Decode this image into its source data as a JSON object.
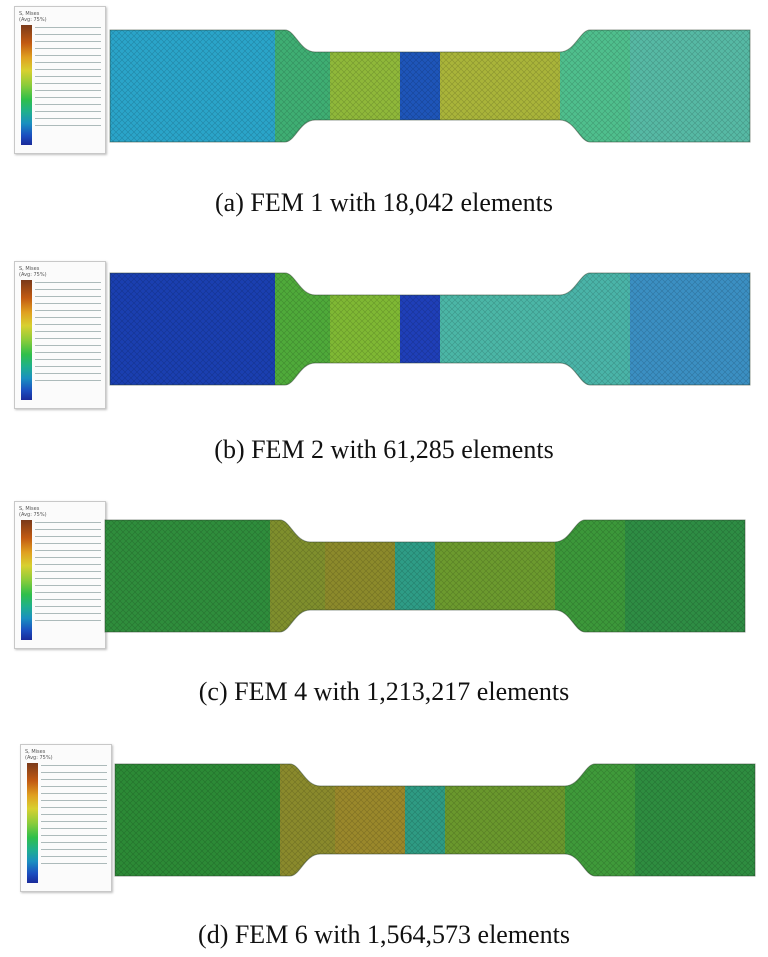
{
  "panels": [
    {
      "id": "a",
      "caption": "(a) FEM 1 with 18,042 elements",
      "colors": {
        "left_grip": "#2aa4c9",
        "left_fillet": "#3fae73",
        "gauge_left": "#8fb83a",
        "neck": "#1e55b9",
        "gauge_right": "#a9b43a",
        "right_fillet": "#4fbf8d",
        "right_grip": "#56b9a4"
      }
    },
    {
      "id": "b",
      "caption": "(b) FEM 2 with 61,285 elements",
      "colors": {
        "left_grip": "#1a3fb0",
        "left_fillet": "#4faa3a",
        "gauge_left": "#7fb834",
        "neck": "#1f3fb8",
        "gauge_right": "#4bb6a6",
        "right_fillet": "#4ab4a8",
        "right_grip": "#3b8fc2"
      }
    },
    {
      "id": "c",
      "caption": "(c) FEM 4 with 1,213,217 elements",
      "colors": {
        "left_grip": "#2f8d3c",
        "left_fillet": "#7f8f2d",
        "gauge_left": "#8c8a2b",
        "neck": "#2e9c86",
        "gauge_right": "#6c9a2e",
        "right_fillet": "#3c983a",
        "right_grip": "#2e8d44"
      }
    },
    {
      "id": "d",
      "caption": "(d) FEM 6 with 1,564,573 elements",
      "colors": {
        "left_grip": "#2c8a36",
        "left_fillet": "#8a8a2c",
        "gauge_left": "#9a882b",
        "neck": "#2e9b83",
        "gauge_right": "#6a982d",
        "right_fillet": "#3f9a3a",
        "right_grip": "#2e8d40"
      }
    }
  ]
}
